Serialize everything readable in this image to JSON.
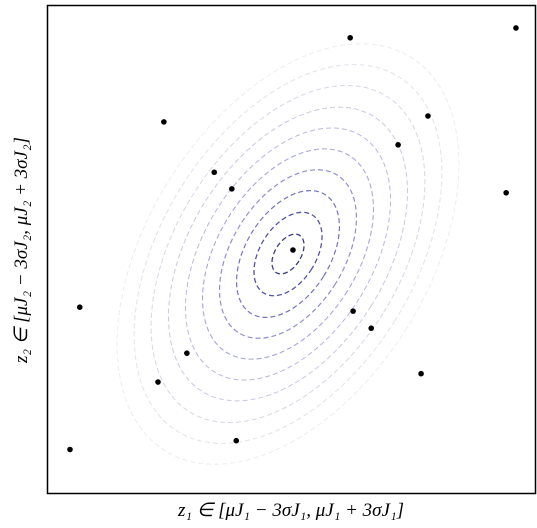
{
  "chart_data": {
    "type": "scatter",
    "xlabel": "z₁ ∈ [μJ₁ − 3σJ₁,  μJ₁ + 3σJ₁]",
    "ylabel": "z₂ ∈ [μJ₂ − 3σJ₂,  μJ₂ + 3σJ₂]",
    "x": [
      62.0,
      95.9,
      23.9,
      77.9,
      71.8,
      34.2,
      37.8,
      93.9,
      50.3,
      6.7,
      62.6,
      66.3,
      28.6,
      22.7,
      76.5,
      38.7,
      4.7
    ],
    "y": [
      93.3,
      95.3,
      76.1,
      77.3,
      71.4,
      65.8,
      62.4,
      61.6,
      49.9,
      38.2,
      37.4,
      33.9,
      28.8,
      22.9,
      24.6,
      10.9,
      9.1
    ],
    "color": "#000000",
    "xlim": [
      0,
      100
    ],
    "ylim": [
      0,
      100
    ]
  }
}
